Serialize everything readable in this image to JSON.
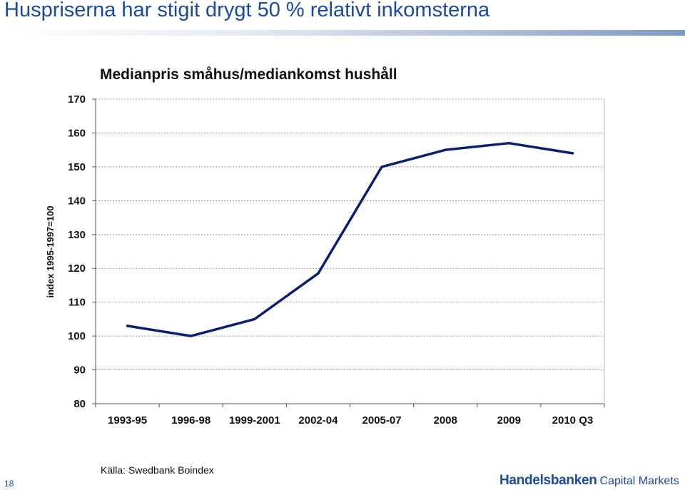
{
  "slide": {
    "title": "Huspriserna har stigit drygt 50 % relativt inkomsterna",
    "page_number": "18",
    "source": "Källa: Swedbank Boindex",
    "brand": {
      "name": "Handelsbanken",
      "sub": "Capital Markets",
      "color": "#1a4a9c"
    }
  },
  "chart_data": {
    "type": "line",
    "title": "Medianpris småhus/mediankomst hushåll",
    "ylabel": "index 1995-1997=100",
    "xlabel": "",
    "categories": [
      "1993-95",
      "1996-98",
      "1999-2001",
      "2002-04",
      "2005-07",
      "2008",
      "2009",
      "2010 Q3"
    ],
    "series": [
      {
        "values": [
          103,
          100,
          105,
          118.5,
          150,
          155,
          157,
          154
        ],
        "color": "#0a1f6e"
      }
    ],
    "ylim": [
      80,
      170
    ],
    "yticks": [
      80,
      90,
      100,
      110,
      120,
      130,
      140,
      150,
      160,
      170
    ],
    "grid": true,
    "legend": "none"
  }
}
